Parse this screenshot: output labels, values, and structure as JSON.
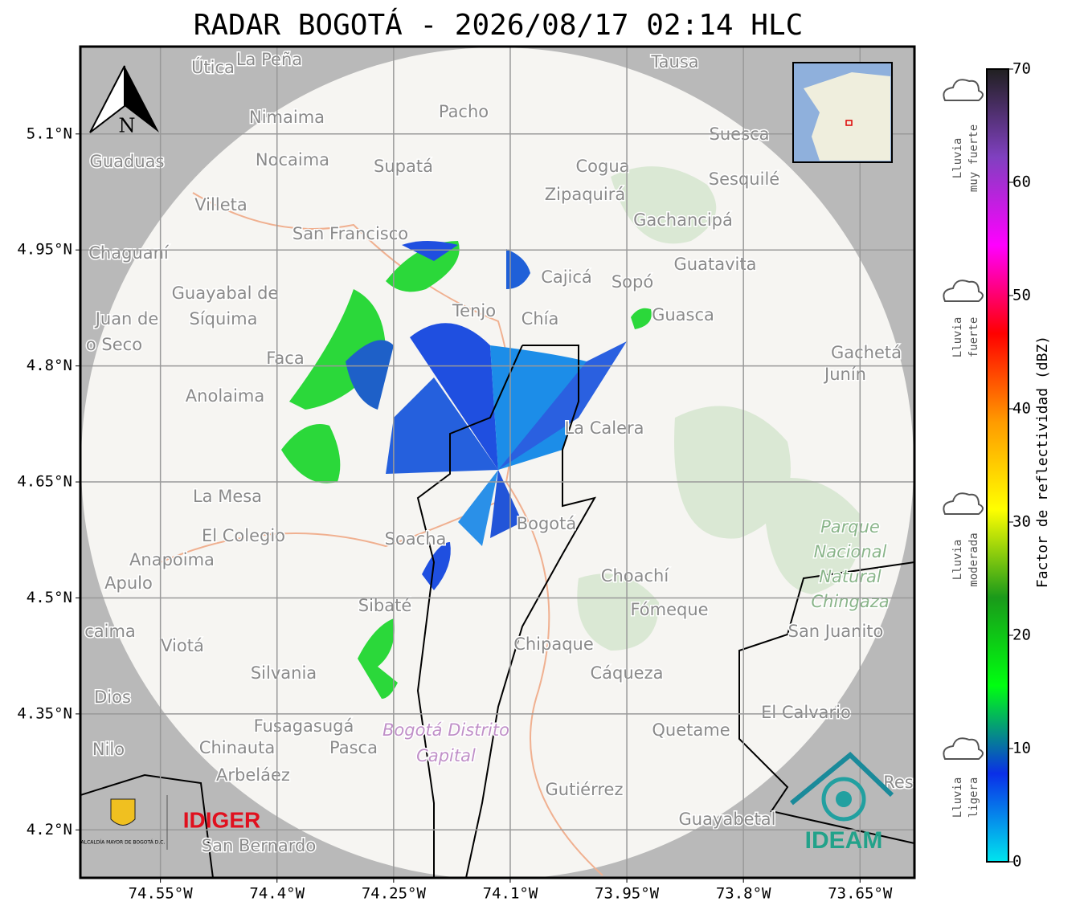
{
  "header": {
    "title": "RADAR BOGOTÁ - 2026/08/17 02:14 HLC"
  },
  "map": {
    "lonlim": [
      -74.653,
      -73.58
    ],
    "latlim": [
      4.138,
      5.213
    ],
    "lon_ticks": [
      {
        "value": -74.55,
        "label": "74.55°W"
      },
      {
        "value": -74.4,
        "label": "74.4°W"
      },
      {
        "value": -74.25,
        "label": "74.25°W"
      },
      {
        "value": -74.1,
        "label": "74.1°W"
      },
      {
        "value": -73.95,
        "label": "73.95°W"
      },
      {
        "value": -73.8,
        "label": "73.8°W"
      },
      {
        "value": -73.65,
        "label": "73.65°W"
      }
    ],
    "lat_ticks": [
      {
        "value": 5.1,
        "label": "5.1°N"
      },
      {
        "value": 4.95,
        "label": "4.95°N"
      },
      {
        "value": 4.8,
        "label": "4.8°N"
      },
      {
        "value": 4.65,
        "label": "4.65°N"
      },
      {
        "value": 4.5,
        "label": "4.5°N"
      },
      {
        "value": 4.35,
        "label": "4.35°N"
      },
      {
        "value": 4.2,
        "label": "4.2°N"
      }
    ],
    "grid": true,
    "north_arrow": "N",
    "places": [
      "Útica",
      "La Peña",
      "Tausa",
      "Pacho",
      "Nimaima",
      "Suesca",
      "Guaduas",
      "Nocaima",
      "Supatá",
      "Cogua",
      "Sesquilé",
      "Villeta",
      "Zipaquirá",
      "Gachancipá",
      "San Francisco",
      "Chaguaní",
      "Guatavita",
      "Cajicá",
      "Sopó",
      "Guayabal de",
      "Síquima",
      "Juan de",
      "Tenjo",
      "Chía",
      "Guasca",
      "o Seco",
      "Faca",
      "Gachetá",
      "Junín",
      "Anolaima",
      "La Calera",
      "La Mesa",
      "El Colegio",
      "Soacha",
      "Bogotá",
      "Anapoima",
      "Apulo",
      "Choachí",
      "Sibaté",
      "Fómeque",
      "San Juanito",
      "caima",
      "Viotá",
      "Chipaque",
      "Silvania",
      "Cáqueza",
      "Dios",
      "El Calvario",
      "Fusagasugá",
      "Quetame",
      "Nilo",
      "Chinauta",
      "Pasca",
      "Arbeláez",
      "Gutiérrez",
      "Res",
      "Guayabetal",
      "San Bernardo"
    ],
    "park": [
      "Parque",
      "Nacional",
      "Natural",
      "Chingaza"
    ],
    "district": [
      "Bogotá Distrito",
      "Capital"
    ],
    "logos": {
      "bogota": "ALCALDÍA MAYOR DE BOGOTÁ D.C.",
      "idiger": "IDIGER",
      "ideam": "IDEAM"
    }
  },
  "colorbar": {
    "label": "Factor de reflectividad (dBZ)",
    "lim": [
      0,
      70
    ],
    "ticks": [
      0,
      10,
      20,
      30,
      40,
      50,
      60,
      70
    ],
    "colors": [
      "#00e5ee",
      "#0a2fe8",
      "#00ff10",
      "#1a9a1a",
      "#ffff00",
      "#ff9a00",
      "#ff0000",
      "#ff00ff",
      "#8040c0",
      "#202020"
    ],
    "categories": [
      [
        "Lluvia",
        "muy fuerte"
      ],
      [
        "Lluvia",
        "fuerte"
      ],
      [
        "Lluvia",
        "moderada"
      ],
      [
        "Lluvia",
        "ligera"
      ]
    ]
  }
}
